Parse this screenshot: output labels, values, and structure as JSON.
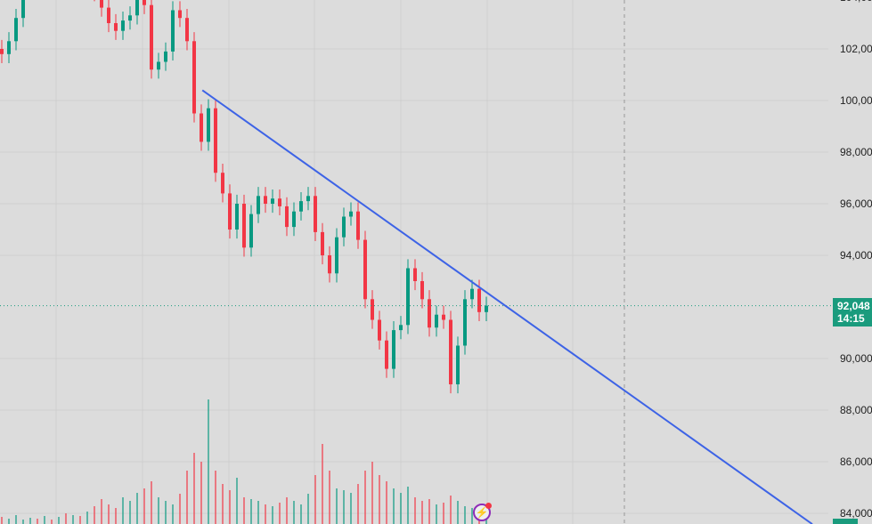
{
  "chart_data": {
    "type": "candlestick",
    "title": "",
    "xlabel": "",
    "ylabel": "",
    "ylim": [
      83700,
      104100
    ],
    "y_ticks": [
      "104,000",
      "102,000",
      "100,000",
      "98,000",
      "96,000",
      "94,000",
      "90,000",
      "88,000",
      "86,000",
      "84,000"
    ],
    "y_tick_values": [
      104000,
      102000,
      100000,
      98000,
      96000,
      94000,
      90000,
      88000,
      86000,
      84000
    ],
    "grid": true,
    "closes": [
      101800,
      102300,
      103200,
      104500,
      105000,
      104800,
      105200,
      104900,
      105100,
      104700,
      105000,
      104600,
      104800,
      104200,
      103600,
      103000,
      102700,
      103100,
      103300,
      103900,
      103700,
      101200,
      101500,
      101900,
      103500,
      103200,
      102300,
      99500,
      98400,
      99700,
      97200,
      96400,
      95000,
      96000,
      94300,
      95600,
      96300,
      96000,
      96200,
      95900,
      95100,
      95700,
      96100,
      96300,
      94900,
      94000,
      93300,
      94700,
      95500,
      95700,
      94600,
      92300,
      91500,
      90700,
      89600,
      91100,
      91300,
      93500,
      93000,
      92300,
      91200,
      91700,
      91500,
      89000,
      90500,
      92300,
      92700,
      91800,
      92048
    ],
    "volumes": [
      8,
      6,
      10,
      5,
      7,
      6,
      9,
      5,
      8,
      12,
      10,
      9,
      14,
      20,
      28,
      22,
      18,
      30,
      26,
      35,
      40,
      48,
      30,
      26,
      22,
      34,
      60,
      80,
      70,
      140,
      60,
      45,
      38,
      52,
      30,
      28,
      26,
      22,
      20,
      24,
      30,
      26,
      22,
      34,
      55,
      90,
      60,
      40,
      38,
      35,
      45,
      60,
      70,
      55,
      48,
      40,
      35,
      42,
      30,
      26,
      28,
      22,
      24,
      32,
      26,
      20,
      18,
      14,
      10
    ],
    "last_price": {
      "label": "92,048",
      "countdown": "14:15",
      "value": 92048
    },
    "trendline": {
      "start": {
        "bar": 28.4,
        "price": 100400
      },
      "end": {
        "bar": 114,
        "price": 83580
      },
      "color": "#3d63e6"
    },
    "colors": {
      "up": "#089981",
      "down": "#f23645",
      "last_price": "#1a9b7d",
      "background": "#dcdcdc"
    }
  },
  "icons": {
    "marker": "lightning-icon"
  }
}
